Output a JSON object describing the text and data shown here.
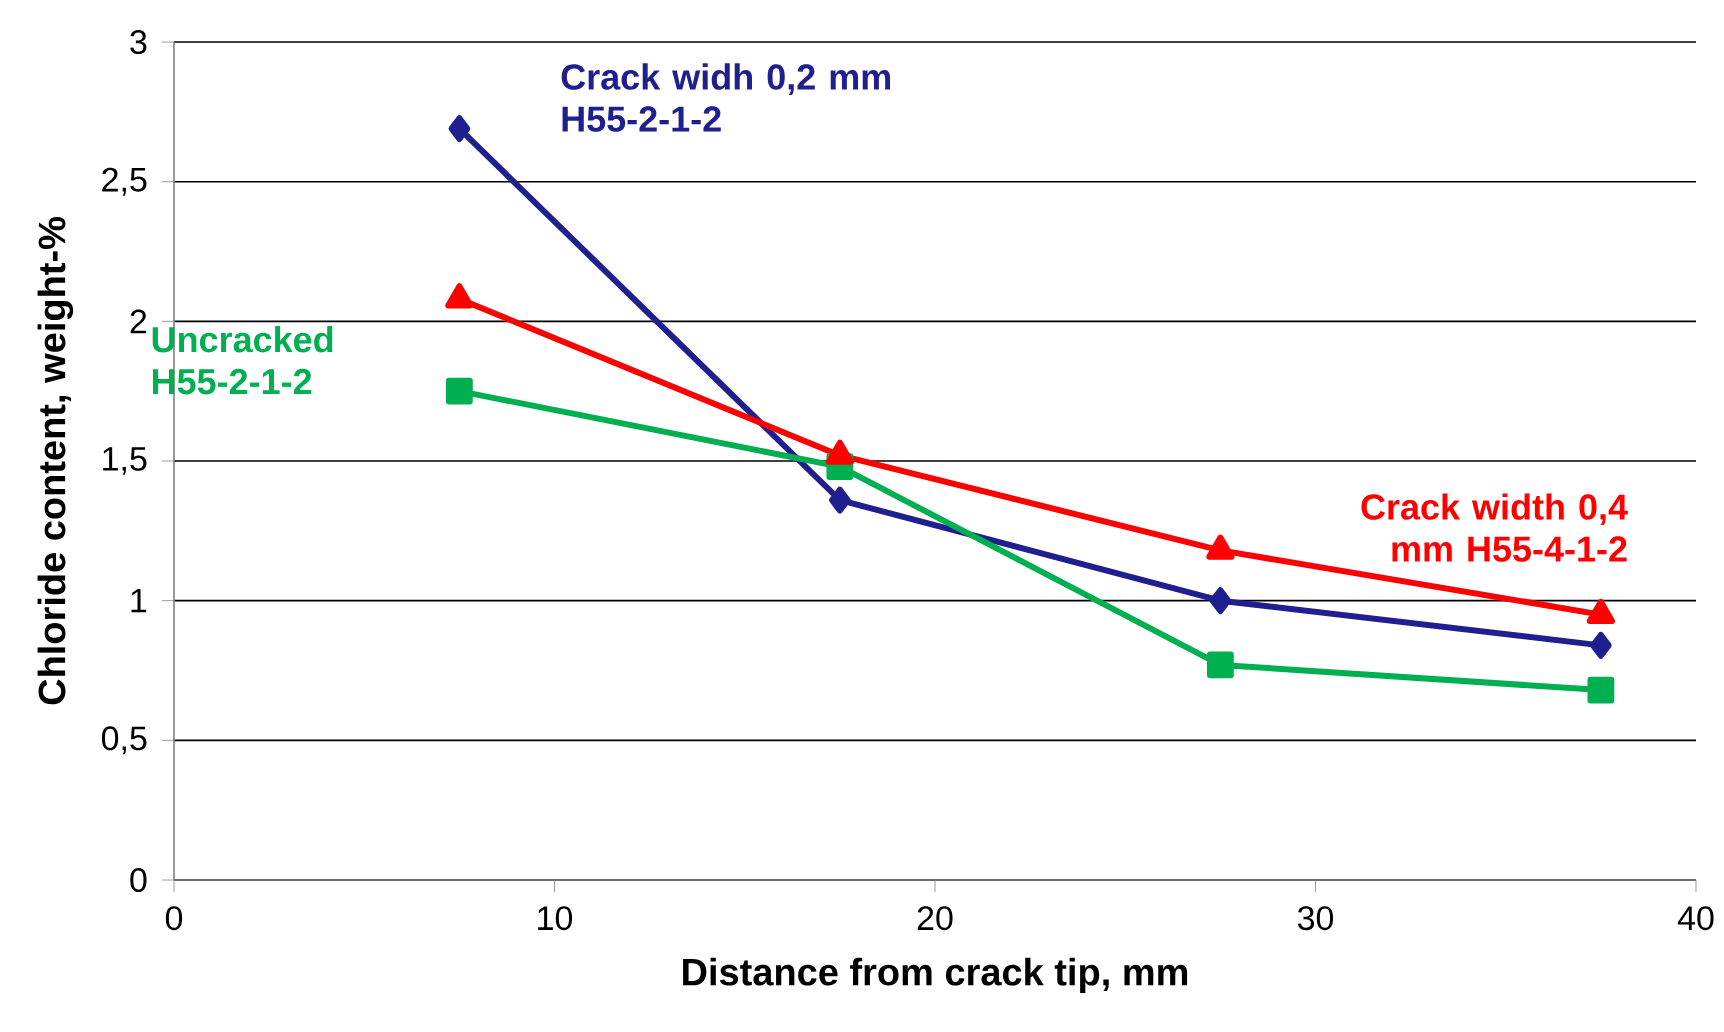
{
  "chart_data": {
    "type": "line",
    "xlabel": "Distance from crack tip, mm",
    "ylabel": "Chloride content, weight-%",
    "xlim": [
      0,
      40
    ],
    "xticks": [
      0,
      10,
      20,
      30,
      40
    ],
    "ylim": [
      0,
      3
    ],
    "yticks": [
      0,
      {
        "value": 0.5,
        "label": "0,5"
      },
      1,
      {
        "value": 1.5,
        "label": "1,5"
      },
      2,
      {
        "value": 2.5,
        "label": "2,5"
      },
      3
    ],
    "grid": "y",
    "legend": false,
    "series": [
      {
        "name": "Crack widh 0,2 mm H55-2-1-2",
        "color": "#1f1f8f",
        "marker": "diamond",
        "x": [
          7.5,
          17.5,
          27.5,
          37.5
        ],
        "values": [
          2.69,
          1.36,
          1.0,
          0.84
        ]
      },
      {
        "name": "Uncracked H55-2-1-2",
        "color": "#00b050",
        "marker": "square",
        "x": [
          7.5,
          17.5,
          27.5,
          37.5
        ],
        "values": [
          1.75,
          1.48,
          0.77,
          0.68
        ]
      },
      {
        "name": "Crack width 0,4 mm H55-4-1-2",
        "color": "#ff0000",
        "marker": "triangle",
        "x": [
          7.5,
          17.5,
          27.5,
          37.5
        ],
        "values": [
          2.08,
          1.52,
          1.18,
          0.95
        ]
      }
    ]
  }
}
